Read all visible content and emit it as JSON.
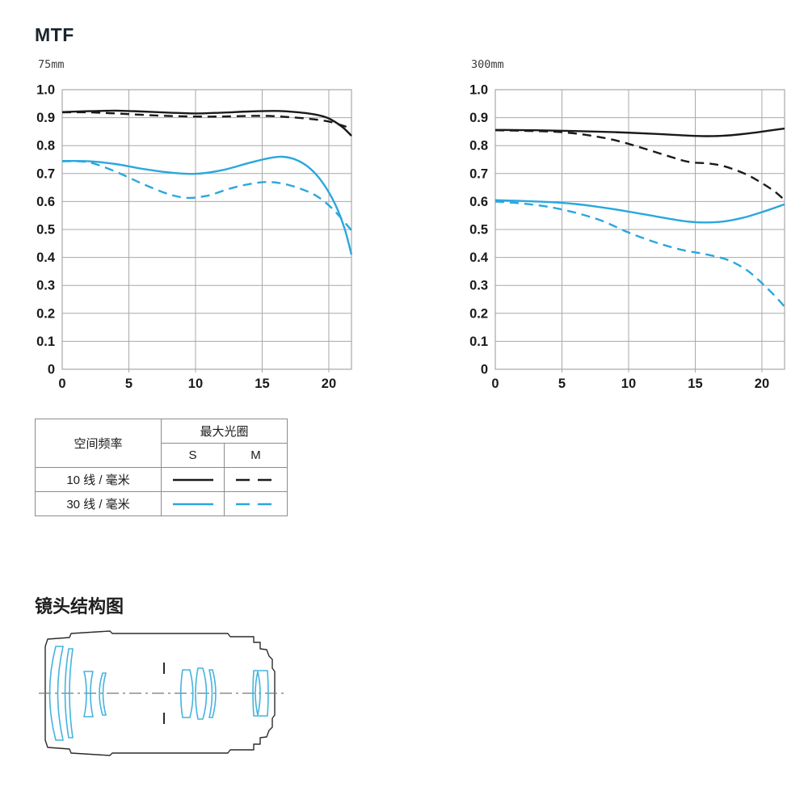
{
  "page": {
    "title": "MTF",
    "lens_diagram_title": "镜头结构图"
  },
  "colors": {
    "curve_black": "#1a1a1a",
    "curve_blue": "#2aa7de",
    "grid": "#a8a8a8",
    "tick_text": "#1a1a1a",
    "lens_outline": "#2b2b2b",
    "lens_element": "#45b4de"
  },
  "chart_data": [
    {
      "type": "line",
      "title": "75mm",
      "xlabel": "",
      "ylabel": "",
      "xlim": [
        0,
        21.7
      ],
      "ylim": [
        0,
        1.0
      ],
      "grid": true,
      "legend_position": "table-below",
      "x_ticks": [
        0,
        5,
        10,
        15,
        20
      ],
      "x_tick_labels": [
        "0",
        "5",
        "10",
        "15",
        "20"
      ],
      "y_ticks": [
        0,
        0.1,
        0.2,
        0.3,
        0.4,
        0.5,
        0.6,
        0.7,
        0.8,
        0.9,
        1.0
      ],
      "y_tick_labels": [
        "0",
        "0.1",
        "0.2",
        "0.3",
        "0.4",
        "0.5",
        "0.6",
        "0.7",
        "0.8",
        "0.9",
        "1.0"
      ],
      "series": [
        {
          "id": "10lines-S",
          "name": "10线/毫米 S",
          "style": "solid",
          "color": "#1a1a1a",
          "points": [
            [
              0,
              0.92
            ],
            [
              2,
              0.923
            ],
            [
              4,
              0.925
            ],
            [
              6,
              0.922
            ],
            [
              8,
              0.918
            ],
            [
              10,
              0.915
            ],
            [
              12,
              0.918
            ],
            [
              14,
              0.922
            ],
            [
              16,
              0.924
            ],
            [
              17.5,
              0.92
            ],
            [
              19,
              0.911
            ],
            [
              20,
              0.897
            ],
            [
              21,
              0.867
            ],
            [
              21.7,
              0.835
            ]
          ]
        },
        {
          "id": "10lines-M",
          "name": "10线/毫米 M",
          "style": "dashed",
          "color": "#1a1a1a",
          "points": [
            [
              0,
              0.919
            ],
            [
              2,
              0.919
            ],
            [
              4,
              0.915
            ],
            [
              6,
              0.91
            ],
            [
              8,
              0.906
            ],
            [
              10,
              0.904
            ],
            [
              12,
              0.904
            ],
            [
              14,
              0.906
            ],
            [
              15.5,
              0.906
            ],
            [
              17,
              0.902
            ],
            [
              18.5,
              0.896
            ],
            [
              20,
              0.886
            ],
            [
              21,
              0.872
            ],
            [
              21.7,
              0.862
            ]
          ]
        },
        {
          "id": "30lines-S",
          "name": "30线/毫米 S",
          "style": "solid",
          "color": "#2aa7de",
          "points": [
            [
              0,
              0.745
            ],
            [
              2,
              0.744
            ],
            [
              4,
              0.734
            ],
            [
              6,
              0.717
            ],
            [
              8,
              0.704
            ],
            [
              10,
              0.699
            ],
            [
              12,
              0.712
            ],
            [
              14,
              0.738
            ],
            [
              15.5,
              0.755
            ],
            [
              16.5,
              0.76
            ],
            [
              17.5,
              0.75
            ],
            [
              18.5,
              0.722
            ],
            [
              19.5,
              0.67
            ],
            [
              20.5,
              0.588
            ],
            [
              21.2,
              0.5
            ],
            [
              21.7,
              0.41
            ]
          ]
        },
        {
          "id": "30lines-M",
          "name": "30线/毫米 M",
          "style": "dashed",
          "color": "#2aa7de",
          "points": [
            [
              0,
              0.744
            ],
            [
              2,
              0.74
            ],
            [
              4,
              0.707
            ],
            [
              6,
              0.664
            ],
            [
              8,
              0.626
            ],
            [
              9.5,
              0.613
            ],
            [
              11,
              0.622
            ],
            [
              12.5,
              0.645
            ],
            [
              14,
              0.662
            ],
            [
              15.5,
              0.67
            ],
            [
              17,
              0.659
            ],
            [
              18.5,
              0.634
            ],
            [
              19.5,
              0.606
            ],
            [
              20.5,
              0.563
            ],
            [
              21.7,
              0.497
            ]
          ]
        }
      ]
    },
    {
      "type": "line",
      "title": "300mm",
      "xlabel": "",
      "ylabel": "",
      "xlim": [
        0,
        21.7
      ],
      "ylim": [
        0,
        1.0
      ],
      "grid": true,
      "legend_position": "table-below",
      "x_ticks": [
        0,
        5,
        10,
        15,
        20
      ],
      "x_tick_labels": [
        "0",
        "5",
        "10",
        "15",
        "20"
      ],
      "y_ticks": [
        0,
        0.1,
        0.2,
        0.3,
        0.4,
        0.5,
        0.6,
        0.7,
        0.8,
        0.9,
        1.0
      ],
      "y_tick_labels": [
        "0",
        "0.1",
        "0.2",
        "0.3",
        "0.4",
        "0.5",
        "0.6",
        "0.7",
        "0.8",
        "0.9",
        "1.0"
      ],
      "series": [
        {
          "id": "10lines-S",
          "name": "10线/毫米 S",
          "style": "solid",
          "color": "#1a1a1a",
          "points": [
            [
              0,
              0.856
            ],
            [
              3,
              0.855
            ],
            [
              6,
              0.852
            ],
            [
              9,
              0.848
            ],
            [
              12,
              0.842
            ],
            [
              14,
              0.837
            ],
            [
              15.5,
              0.834
            ],
            [
              17,
              0.835
            ],
            [
              18.5,
              0.841
            ],
            [
              20,
              0.85
            ],
            [
              21.7,
              0.861
            ]
          ]
        },
        {
          "id": "10lines-M",
          "name": "10线/毫米 M",
          "style": "dashed",
          "color": "#1a1a1a",
          "points": [
            [
              0,
              0.855
            ],
            [
              3,
              0.852
            ],
            [
              5,
              0.848
            ],
            [
              7,
              0.837
            ],
            [
              9,
              0.819
            ],
            [
              11,
              0.792
            ],
            [
              13,
              0.762
            ],
            [
              14.5,
              0.742
            ],
            [
              16,
              0.736
            ],
            [
              17,
              0.728
            ],
            [
              18,
              0.713
            ],
            [
              19,
              0.693
            ],
            [
              20,
              0.666
            ],
            [
              21,
              0.634
            ],
            [
              21.7,
              0.605
            ]
          ]
        },
        {
          "id": "30lines-S",
          "name": "30线/毫米 S",
          "style": "solid",
          "color": "#2aa7de",
          "points": [
            [
              0,
              0.605
            ],
            [
              2,
              0.602
            ],
            [
              4,
              0.598
            ],
            [
              6,
              0.591
            ],
            [
              8,
              0.579
            ],
            [
              10,
              0.564
            ],
            [
              12,
              0.547
            ],
            [
              14,
              0.531
            ],
            [
              15.5,
              0.525
            ],
            [
              17,
              0.528
            ],
            [
              18.5,
              0.541
            ],
            [
              20,
              0.562
            ],
            [
              21.7,
              0.59
            ]
          ]
        },
        {
          "id": "30lines-M",
          "name": "30线/毫米 M",
          "style": "dashed",
          "color": "#2aa7de",
          "points": [
            [
              0,
              0.6
            ],
            [
              2,
              0.593
            ],
            [
              4,
              0.581
            ],
            [
              6,
              0.56
            ],
            [
              8,
              0.531
            ],
            [
              10,
              0.489
            ],
            [
              12,
              0.454
            ],
            [
              14,
              0.427
            ],
            [
              15.5,
              0.414
            ],
            [
              17,
              0.398
            ],
            [
              18,
              0.379
            ],
            [
              19,
              0.35
            ],
            [
              20,
              0.308
            ],
            [
              21,
              0.261
            ],
            [
              21.7,
              0.224
            ]
          ]
        }
      ]
    }
  ],
  "legend_table": {
    "row_header": "空间频率",
    "group_header": "最大光圈",
    "sub_headers": [
      "S",
      "M"
    ],
    "rows": [
      {
        "label": "10 线 / 毫米",
        "color": "#1a1a1a"
      },
      {
        "label": "30 线 / 毫米",
        "color": "#2aa7de"
      }
    ]
  }
}
